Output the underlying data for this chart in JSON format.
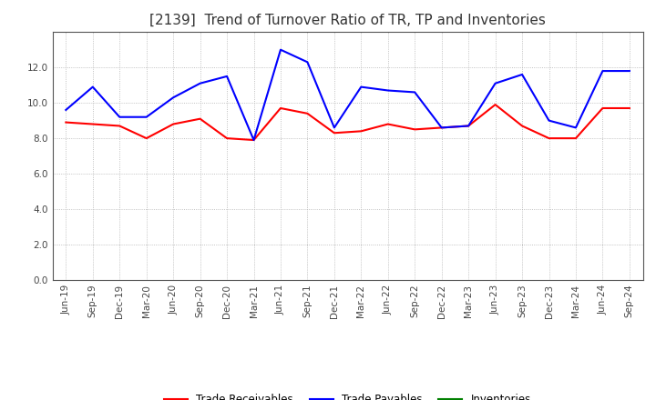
{
  "title": "[2139]  Trend of Turnover Ratio of TR, TP and Inventories",
  "x_labels": [
    "Jun-19",
    "Sep-19",
    "Dec-19",
    "Mar-20",
    "Jun-20",
    "Sep-20",
    "Dec-20",
    "Mar-21",
    "Jun-21",
    "Sep-21",
    "Dec-21",
    "Mar-22",
    "Jun-22",
    "Sep-22",
    "Dec-22",
    "Mar-23",
    "Jun-23",
    "Sep-23",
    "Dec-23",
    "Mar-24",
    "Jun-24",
    "Sep-24"
  ],
  "trade_receivables": [
    8.9,
    8.8,
    8.7,
    8.0,
    8.8,
    9.1,
    8.0,
    7.9,
    9.7,
    9.4,
    8.3,
    8.4,
    8.8,
    8.5,
    8.6,
    8.7,
    9.9,
    8.7,
    8.0,
    8.0,
    9.7,
    9.7
  ],
  "trade_payables": [
    9.6,
    10.9,
    9.2,
    9.2,
    10.3,
    11.1,
    11.5,
    7.9,
    13.0,
    12.3,
    8.6,
    10.9,
    10.7,
    10.6,
    8.6,
    8.7,
    11.1,
    11.6,
    9.0,
    8.6,
    11.8,
    11.8
  ],
  "inventories": [
    null,
    null,
    null,
    null,
    null,
    null,
    null,
    null,
    null,
    null,
    null,
    null,
    null,
    null,
    null,
    null,
    null,
    null,
    null,
    null,
    null,
    null
  ],
  "ylim": [
    0,
    14
  ],
  "yticks": [
    0.0,
    2.0,
    4.0,
    6.0,
    8.0,
    10.0,
    12.0
  ],
  "color_tr": "#ff0000",
  "color_tp": "#0000ff",
  "color_inv": "#008000",
  "background_color": "#ffffff",
  "grid_color": "#b0b0b0",
  "title_fontsize": 11,
  "tick_fontsize": 7.5,
  "legend_fontsize": 8.5,
  "linewidth": 1.5,
  "legend_labels": [
    "Trade Receivables",
    "Trade Payables",
    "Inventories"
  ]
}
